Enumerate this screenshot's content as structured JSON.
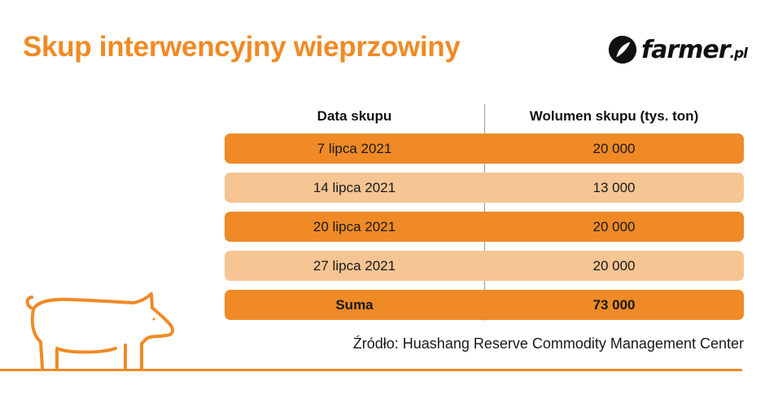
{
  "title": "Skup interwencyjny wieprzowiny",
  "logo": {
    "name": "farmer",
    "tld": ".pl"
  },
  "colors": {
    "accent": "#ef8a27",
    "row_light": "#f6c594",
    "title": "#f08a24"
  },
  "table": {
    "headers": [
      "Data skupu",
      "Wolumen skupu (tys. ton)"
    ],
    "rows": [
      {
        "date": "7 lipca 2021",
        "volume": "20 000"
      },
      {
        "date": "14 lipca 2021",
        "volume": "13 000"
      },
      {
        "date": "20 lipca 2021",
        "volume": "20 000"
      },
      {
        "date": "27 lipca 2021",
        "volume": "20 000"
      }
    ],
    "total": {
      "label": "Suma",
      "value": "73 000"
    }
  },
  "source": "Źródło: Huashang Reserve Commodity Management Center",
  "chart_data": {
    "type": "table",
    "title": "Skup interwencyjny wieprzowiny",
    "columns": [
      "Data skupu",
      "Wolumen skupu (tys. ton)"
    ],
    "categories": [
      "7 lipca 2021",
      "14 lipca 2021",
      "20 lipca 2021",
      "27 lipca 2021"
    ],
    "values": [
      20000,
      13000,
      20000,
      20000
    ],
    "total": 73000
  },
  "icons": [
    "farmer-logo-icon",
    "pig-icon"
  ]
}
